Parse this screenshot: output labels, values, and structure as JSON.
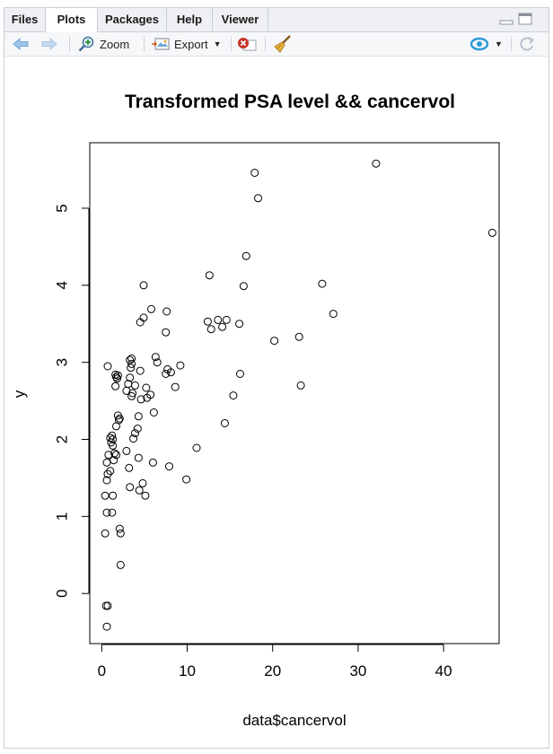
{
  "tabs": [
    {
      "label": "Files"
    },
    {
      "label": "Plots"
    },
    {
      "label": "Packages"
    },
    {
      "label": "Help"
    },
    {
      "label": "Viewer"
    }
  ],
  "active_tab": "Plots",
  "toolbar": {
    "zoom_label": "Zoom",
    "export_label": "Export",
    "back_icon": "arrow-left-icon",
    "forward_icon": "arrow-right-icon",
    "zoom_icon": "magnifier-plus-icon",
    "export_icon": "export-image-icon",
    "remove_icon": "remove-plot-icon",
    "clear_icon": "broom-icon",
    "publish_icon": "publish-icon",
    "refresh_icon": "refresh-icon"
  },
  "colors": {
    "tab_bg": "#eef0f3",
    "border": "#c9ced6",
    "arrow_blue": "#8db8e0",
    "remove_red": "#c8342b",
    "publish_blue": "#2a9ad8"
  },
  "chart_data": {
    "type": "scatter",
    "title": "Transformed PSA level && cancervol",
    "xlabel": "data$cancervol",
    "ylabel": "y",
    "xlim": [
      -1.4,
      46.5
    ],
    "ylim": [
      -0.65,
      5.85
    ],
    "xticks": [
      0,
      10,
      20,
      30,
      40
    ],
    "yticks": [
      0,
      1,
      2,
      3,
      4,
      5
    ],
    "grid": false,
    "points": [
      [
        0.6,
        -0.43
      ],
      [
        0.5,
        -0.16
      ],
      [
        0.7,
        -0.16
      ],
      [
        2.2,
        0.37
      ],
      [
        0.4,
        0.78
      ],
      [
        2.1,
        0.84
      ],
      [
        2.2,
        0.78
      ],
      [
        0.4,
        1.27
      ],
      [
        1.3,
        1.27
      ],
      [
        0.6,
        1.05
      ],
      [
        1.2,
        1.05
      ],
      [
        0.6,
        1.47
      ],
      [
        0.7,
        1.55
      ],
      [
        1.0,
        1.59
      ],
      [
        1.4,
        1.73
      ],
      [
        0.6,
        1.7
      ],
      [
        0.8,
        1.8
      ],
      [
        1.5,
        1.82
      ],
      [
        1.7,
        1.8
      ],
      [
        1.1,
        1.96
      ],
      [
        1.3,
        1.92
      ],
      [
        1.0,
        2.02
      ],
      [
        1.3,
        2.0
      ],
      [
        1.2,
        2.05
      ],
      [
        1.7,
        2.17
      ],
      [
        1.9,
        2.31
      ],
      [
        2.1,
        2.27
      ],
      [
        2.0,
        2.25
      ],
      [
        1.6,
        2.69
      ],
      [
        1.7,
        2.81
      ],
      [
        1.8,
        2.79
      ],
      [
        1.6,
        2.84
      ],
      [
        1.9,
        2.83
      ],
      [
        0.7,
        2.95
      ],
      [
        3.3,
        1.38
      ],
      [
        3.2,
        1.63
      ],
      [
        2.9,
        1.85
      ],
      [
        4.4,
        1.34
      ],
      [
        4.8,
        1.43
      ],
      [
        5.1,
        1.27
      ],
      [
        4.3,
        1.76
      ],
      [
        3.7,
        2.01
      ],
      [
        3.9,
        2.08
      ],
      [
        4.2,
        2.14
      ],
      [
        4.3,
        2.3
      ],
      [
        4.6,
        2.52
      ],
      [
        5.3,
        2.54
      ],
      [
        6.1,
        2.35
      ],
      [
        5.7,
        2.58
      ],
      [
        2.9,
        2.63
      ],
      [
        3.5,
        2.56
      ],
      [
        3.6,
        2.6
      ],
      [
        3.1,
        2.72
      ],
      [
        3.3,
        2.8
      ],
      [
        3.9,
        2.7
      ],
      [
        5.2,
        2.67
      ],
      [
        3.4,
        2.93
      ],
      [
        3.5,
        2.98
      ],
      [
        3.3,
        3.03
      ],
      [
        3.5,
        3.05
      ],
      [
        4.5,
        2.89
      ],
      [
        6.3,
        3.07
      ],
      [
        6.5,
        3.0
      ],
      [
        7.5,
        2.85
      ],
      [
        7.7,
        2.91
      ],
      [
        8.1,
        2.87
      ],
      [
        8.6,
        2.68
      ],
      [
        9.2,
        2.96
      ],
      [
        7.9,
        1.65
      ],
      [
        6.0,
        1.7
      ],
      [
        4.5,
        3.52
      ],
      [
        4.9,
        3.58
      ],
      [
        5.8,
        3.69
      ],
      [
        7.5,
        3.39
      ],
      [
        7.6,
        3.66
      ],
      [
        4.9,
        4.0
      ],
      [
        9.9,
        1.48
      ],
      [
        11.1,
        1.89
      ],
      [
        12.4,
        3.53
      ],
      [
        12.6,
        4.13
      ],
      [
        12.8,
        3.43
      ],
      [
        13.6,
        3.55
      ],
      [
        14.1,
        3.46
      ],
      [
        14.6,
        3.55
      ],
      [
        14.4,
        2.21
      ],
      [
        15.4,
        2.57
      ],
      [
        16.1,
        3.5
      ],
      [
        16.2,
        2.85
      ],
      [
        16.6,
        3.99
      ],
      [
        16.9,
        4.38
      ],
      [
        17.9,
        5.46
      ],
      [
        18.3,
        5.13
      ],
      [
        20.2,
        3.28
      ],
      [
        23.1,
        3.33
      ],
      [
        23.3,
        2.7
      ],
      [
        25.8,
        4.02
      ],
      [
        27.1,
        3.63
      ],
      [
        32.1,
        5.58
      ],
      [
        45.7,
        4.68
      ]
    ]
  }
}
